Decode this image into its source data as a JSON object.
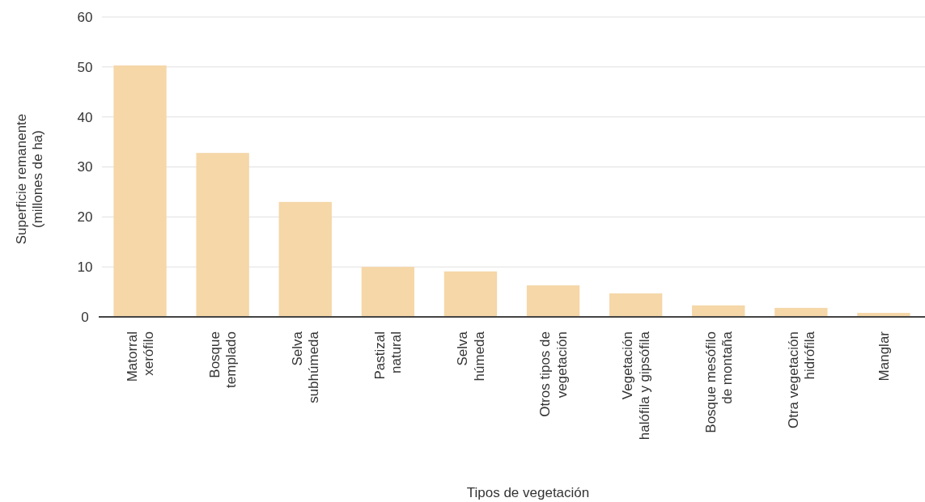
{
  "chart_data": {
    "type": "bar",
    "xlabel": "Tipos de vegetación",
    "ylabel": "Superficie remanente\n(millones de ha)",
    "categories": [
      "Matorral\nxerófilo",
      "Bosque\ntemplado",
      "Selva\nsubhúmeda",
      "Pastizal\nnatural",
      "Selva\nhúmeda",
      "Otros tipos de\nvegetación",
      "Vegetación\nhalófila y gipsófila",
      "Bosque mesófilo\nde montaña",
      "Otra vegetación\nhidrófila",
      "Manglar"
    ],
    "values": [
      50.3,
      32.8,
      23.0,
      10.0,
      9.1,
      6.3,
      4.7,
      2.3,
      1.8,
      0.8
    ],
    "color": "#f5d7a8",
    "ylim": [
      0,
      60
    ],
    "yticks": [
      0,
      10,
      20,
      30,
      40,
      50,
      60
    ],
    "grid": "y"
  }
}
